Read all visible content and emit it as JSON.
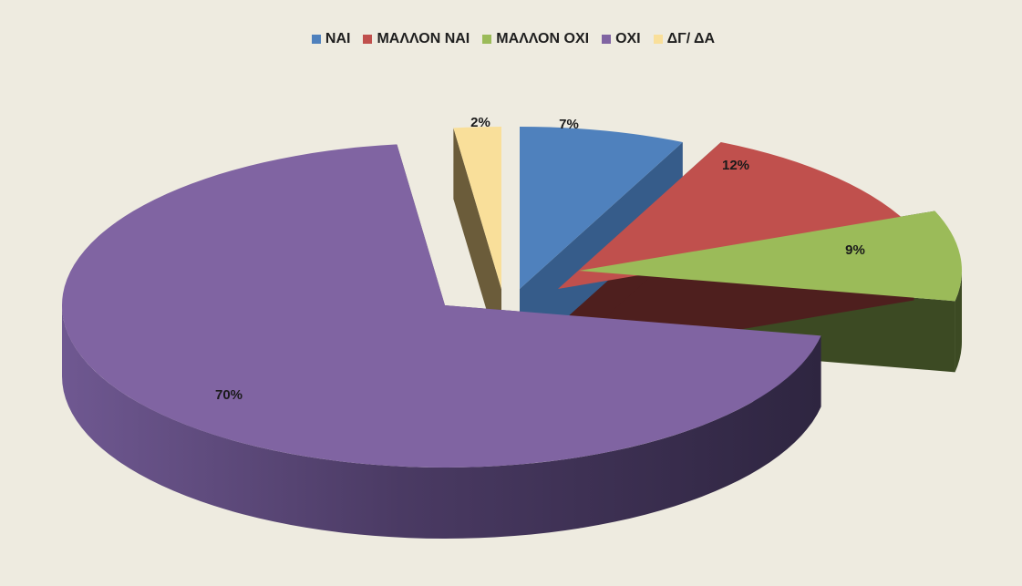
{
  "chart_data": {
    "type": "pie",
    "three_d": true,
    "exploded": true,
    "legend_position": "top",
    "categories": [
      "ΝΑΙ",
      "ΜΑΛΛΟΝ ΝΑΙ",
      "ΜΑΛΛΟΝ ΟΧΙ",
      "ΟΧΙ",
      "ΔΓ/ ΔΑ"
    ],
    "values": [
      7,
      12,
      9,
      70,
      2
    ],
    "data_labels": [
      "7%",
      "12%",
      "9%",
      "70%",
      "2%"
    ],
    "colors": [
      "#4F81BD",
      "#C0504D",
      "#9BBB59",
      "#8064A2",
      "#F9DF9A"
    ]
  }
}
